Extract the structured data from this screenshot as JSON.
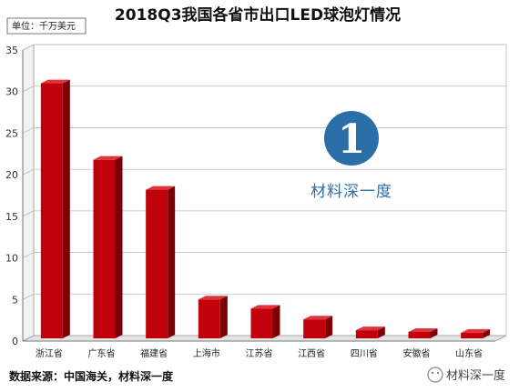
{
  "chart_data": {
    "type": "bar",
    "title": "2018Q3我国各省市出口LED球泡灯情况",
    "unit_label": "单位：千万美元",
    "categories": [
      "浙江省",
      "广东省",
      "福建省",
      "上海市",
      "江苏省",
      "江西省",
      "四川省",
      "安徽省",
      "山东省"
    ],
    "values": [
      31,
      21.8,
      18.2,
      5,
      3.9,
      2.6,
      1.3,
      1.1,
      1.0
    ],
    "ylim": [
      0,
      35
    ],
    "yticks": [
      0,
      5,
      10,
      15,
      20,
      25,
      30,
      35
    ],
    "grid": true,
    "bar_color": "#c0000a",
    "source": "数据来源：中国海关，材料深一度"
  },
  "watermark": {
    "logo_char": "1",
    "brand_text": "材料深一度",
    "corner_text": "材料深一度",
    "logo_color": "#2b6fa8"
  }
}
